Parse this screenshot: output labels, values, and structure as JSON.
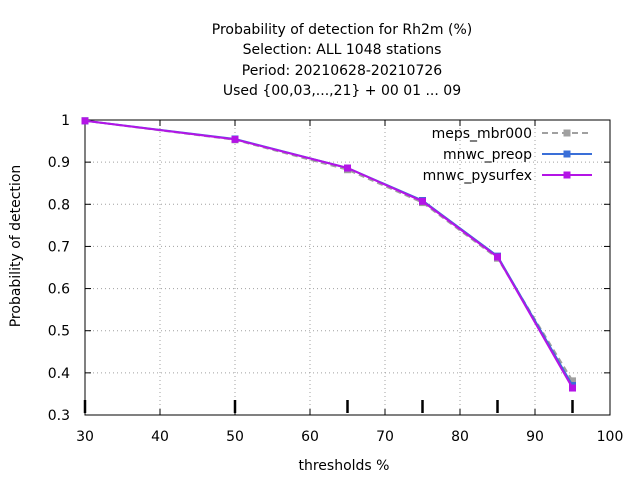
{
  "chart_data": {
    "type": "line",
    "title_lines": [
      "Probability of detection  for Rh2m (%)",
      "Selection: ALL   1048 stations",
      "Period: 20210628-20210726",
      "Used {00,03,...,21} + 00 01 ... 09"
    ],
    "xlabel": "thresholds %",
    "ylabel": "Probability of detection",
    "xlim": [
      30,
      100
    ],
    "ylim": [
      0.3,
      1.0
    ],
    "x_ticks": [
      30,
      40,
      50,
      60,
      70,
      80,
      90,
      100
    ],
    "y_ticks": [
      0.3,
      0.4,
      0.5,
      0.6,
      0.7,
      0.8,
      0.9,
      1.0
    ],
    "y_tick_labels": [
      "0.3",
      "0.4",
      "0.5",
      "0.6",
      "0.7",
      "0.8",
      "0.9",
      "1"
    ],
    "grid": true,
    "legend_position": "top-right",
    "count_tick_x": [
      30,
      50,
      65,
      75,
      85,
      95
    ],
    "x": [
      30,
      50,
      65,
      75,
      85,
      95
    ],
    "series": [
      {
        "name": "meps_mbr000",
        "values": [
          0.998,
          0.953,
          0.882,
          0.804,
          0.672,
          0.381
        ],
        "color": "#a0a0a0",
        "dashed": true
      },
      {
        "name": "mnwc_preop",
        "values": [
          0.998,
          0.955,
          0.886,
          0.809,
          0.677,
          0.37
        ],
        "color": "#3a6fd8",
        "dashed": false
      },
      {
        "name": "mnwc_pysurfex",
        "values": [
          0.998,
          0.954,
          0.886,
          0.807,
          0.675,
          0.364
        ],
        "color": "#b414e6",
        "dashed": false
      }
    ]
  }
}
